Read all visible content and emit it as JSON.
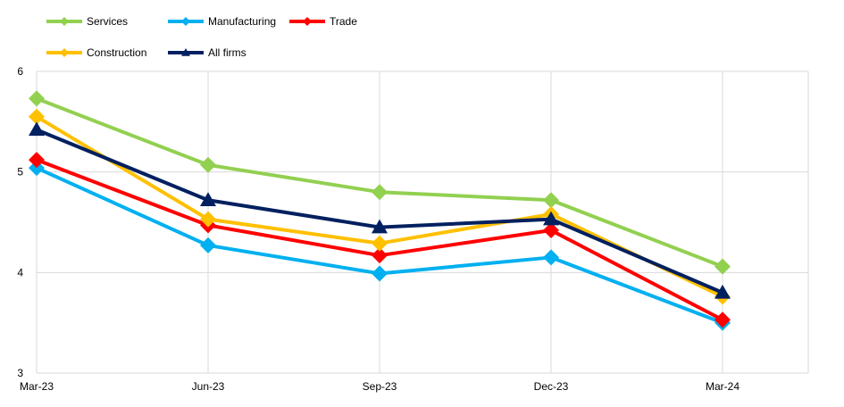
{
  "chart_data": {
    "type": "line",
    "title": "",
    "xlabel": "",
    "ylabel": "",
    "categories": [
      "Mar-23",
      "Jun-23",
      "Sep-23",
      "Dec-23",
      "Mar-24"
    ],
    "ylim": [
      3,
      6
    ],
    "yticks": [
      "3",
      "4",
      "5",
      "6"
    ],
    "grid": true,
    "legend_position": "top-left",
    "series": [
      {
        "name": "Services",
        "color": "#92D050",
        "marker": "diamond",
        "values": [
          5.73,
          5.07,
          4.8,
          4.72,
          4.06
        ]
      },
      {
        "name": "Manufacturing",
        "color": "#00B0F0",
        "marker": "diamond",
        "values": [
          5.04,
          4.27,
          3.99,
          4.15,
          3.5
        ]
      },
      {
        "name": "Trade",
        "color": "#FF0000",
        "marker": "diamond",
        "values": [
          5.12,
          4.47,
          4.17,
          4.42,
          3.53
        ]
      },
      {
        "name": "Construction",
        "color": "#FFC000",
        "marker": "diamond",
        "values": [
          5.55,
          4.53,
          4.29,
          4.58,
          3.76
        ]
      },
      {
        "name": "All firms",
        "color": "#002060",
        "marker": "triangle",
        "values": [
          5.42,
          4.72,
          4.45,
          4.53,
          3.8
        ]
      }
    ]
  }
}
